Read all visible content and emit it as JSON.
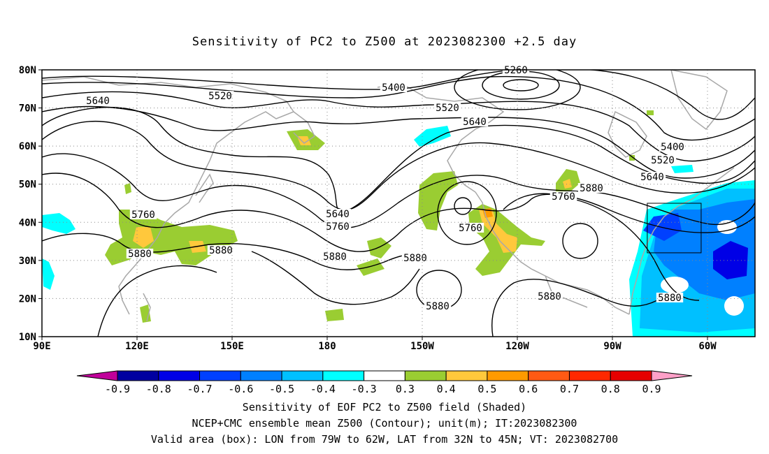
{
  "title": "Sensitivity of PC2 to Z500 at 2023082300 +2.5 day",
  "lat_labels": [
    "80N",
    "70N",
    "60N",
    "50N",
    "40N",
    "30N",
    "20N",
    "10N"
  ],
  "lon_labels": [
    "90E",
    "120E",
    "150E",
    "180",
    "150W",
    "120W",
    "90W",
    "60W"
  ],
  "contour_levels": [
    {
      "name": "5260",
      "text": "5260"
    },
    {
      "name": "5400a",
      "text": "5400"
    },
    {
      "name": "5520a",
      "text": "5520"
    },
    {
      "name": "5640a",
      "text": "5640"
    },
    {
      "name": "5520b",
      "text": "5520"
    },
    {
      "name": "5640b",
      "text": "5640"
    },
    {
      "name": "5400b",
      "text": "5400"
    },
    {
      "name": "5520c",
      "text": "5520"
    },
    {
      "name": "5640c",
      "text": "5640"
    },
    {
      "name": "5760a",
      "text": "5760"
    },
    {
      "name": "5880a",
      "text": "5880"
    },
    {
      "name": "5880b",
      "text": "5880"
    },
    {
      "name": "5640d",
      "text": "5640"
    },
    {
      "name": "5760b",
      "text": "5760"
    },
    {
      "name": "5880c",
      "text": "5880"
    },
    {
      "name": "5880d",
      "text": "5880"
    },
    {
      "name": "5760c",
      "text": "5760"
    },
    {
      "name": "5880e",
      "text": "5880"
    },
    {
      "name": "5760d",
      "text": "5760"
    },
    {
      "name": "5880f",
      "text": "5880"
    },
    {
      "name": "5880g",
      "text": "5880"
    },
    {
      "name": "5880h",
      "text": "5880"
    }
  ],
  "colorbar": {
    "labels": [
      "-0.9",
      "-0.8",
      "-0.7",
      "-0.6",
      "-0.5",
      "-0.4",
      "-0.3",
      "0.3",
      "0.4",
      "0.5",
      "0.6",
      "0.7",
      "0.8",
      "0.9"
    ],
    "colors": [
      "#c0009a",
      "#0000a0",
      "#0000e6",
      "#0040ff",
      "#0080ff",
      "#00c0ff",
      "#00ffff",
      "#ffffff",
      "#9acd32",
      "#ffc83c",
      "#ff9a00",
      "#ff5a14",
      "#ff2800",
      "#e60000",
      "#ffa0c8"
    ]
  },
  "valid_box": {
    "lon_min_w": 79,
    "lon_max_w": 62,
    "lat_min_n": 32,
    "lat_max_n": 45
  },
  "captions": [
    "Sensitivity of EOF PC2 to Z500 field (Shaded)",
    "NCEP+CMC ensemble mean Z500 (Contour); unit(m); IT:2023082300",
    "Valid area (box): LON from 79W to 62W, LAT from 32N to 45N; VT: 2023082700"
  ]
}
